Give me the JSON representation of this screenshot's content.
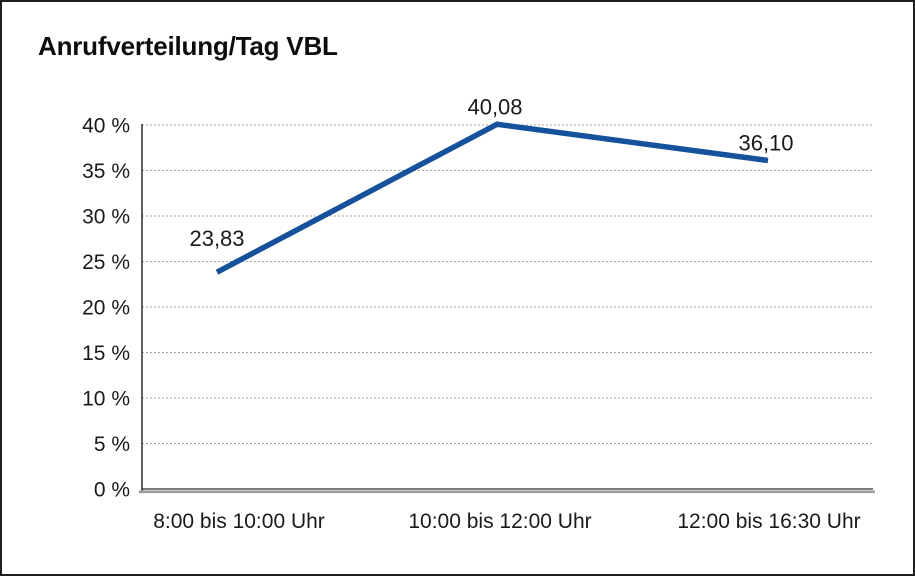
{
  "window": {
    "background": "#ffffff",
    "border_color": "#1f1f1f"
  },
  "chart_data": {
    "type": "line",
    "title": "Anrufverteilung/Tag VBL",
    "categories": [
      "8:00 bis 10:00 Uhr",
      "10:00 bis 12:00 Uhr",
      "12:00 bis 16:30 Uhr"
    ],
    "values": [
      23.83,
      40.08,
      36.1
    ],
    "data_labels": [
      "23,83",
      "40,08",
      "36,10"
    ],
    "y_tick_values": [
      0,
      5,
      10,
      15,
      20,
      25,
      30,
      35,
      40
    ],
    "y_tick_labels": [
      "0 %",
      "5 %",
      "10 %",
      "15 %",
      "20 %",
      "25 %",
      "30 %",
      "35 %",
      "40 %"
    ],
    "ylim": [
      0,
      40
    ],
    "xlabel": "",
    "ylabel": "",
    "legend": "none",
    "grid": "horizontal-dotted",
    "colors": {
      "line": "#15529B",
      "grid": "#8c8c8c",
      "axis_dark": "#2b2b2b",
      "axis_gray": "#9b9b9b",
      "text": "#1a1a1a"
    }
  }
}
